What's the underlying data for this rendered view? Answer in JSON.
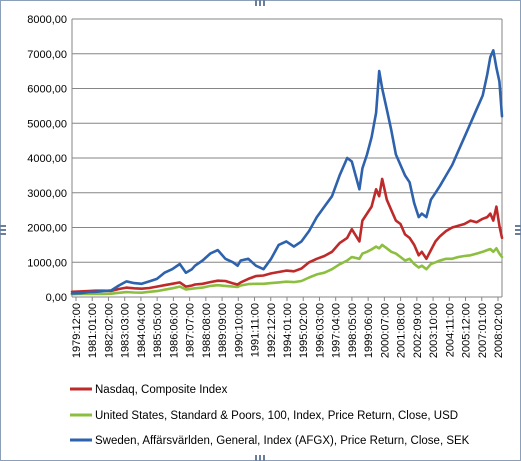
{
  "chart_data": {
    "type": "line",
    "title": "",
    "xlabel": "",
    "ylabel": "",
    "ylim": [
      0,
      8000
    ],
    "yticks": [
      "0,00",
      "1000,00",
      "2000,00",
      "3000,00",
      "4000,00",
      "5000,00",
      "6000,00",
      "7000,00",
      "8000,00"
    ],
    "x_tick_labels": [
      "1979:12:00",
      "1981:01:00",
      "1982:02:00",
      "1983:03:00",
      "1984:04:00",
      "1985:05:00",
      "1986:06:00",
      "1987:07:00",
      "1988:08:00",
      "1989:09:00",
      "1990:10:00",
      "1991:11:00",
      "1992:12:00",
      "1994:01:00",
      "1995:02:00",
      "1996:03:00",
      "1997:04:00",
      "1998:05:00",
      "1999:06:00",
      "2000:07:00",
      "2001:08:00",
      "2002:09:00",
      "2003:10:00",
      "2004:11:00",
      "2005:12:00",
      "2007:01:00",
      "2008:02:00"
    ],
    "grid": "horizontal",
    "legend_position": "bottom",
    "x": [
      1979.92,
      1980.5,
      1981,
      1981.5,
      1982,
      1982.5,
      1983,
      1983.5,
      1984,
      1984.5,
      1985,
      1985.5,
      1986,
      1986.5,
      1987,
      1987.4,
      1987.8,
      1988,
      1988.5,
      1989,
      1989.5,
      1990,
      1990.5,
      1990.8,
      1991,
      1991.5,
      1992,
      1992.5,
      1993,
      1993.5,
      1994,
      1994.5,
      1995,
      1995.5,
      1996,
      1996.5,
      1997,
      1997.5,
      1998,
      1998.3,
      1998.8,
      1999,
      1999.3,
      1999.6,
      1999.9,
      2000.1,
      2000.3,
      2000.6,
      2000.9,
      2001.2,
      2001.5,
      2001.8,
      2002.1,
      2002.4,
      2002.7,
      2002.9,
      2003.2,
      2003.5,
      2003.8,
      2004.1,
      2004.5,
      2004.9,
      2005.3,
      2005.7,
      2006.1,
      2006.5,
      2006.9,
      2007.2,
      2007.4,
      2007.6,
      2007.8,
      2008,
      2008.17
    ],
    "series": [
      {
        "name": "Nasdaq, Composite Index",
        "color": "#be2a2a",
        "values": [
          150,
          160,
          170,
          180,
          180,
          175,
          230,
          270,
          250,
          240,
          260,
          300,
          340,
          380,
          420,
          300,
          330,
          360,
          380,
          430,
          470,
          460,
          390,
          360,
          420,
          520,
          600,
          620,
          680,
          720,
          760,
          740,
          820,
          1000,
          1100,
          1180,
          1300,
          1550,
          1700,
          1950,
          1600,
          2200,
          2400,
          2600,
          3100,
          2900,
          3400,
          2800,
          2500,
          2200,
          2100,
          1800,
          1700,
          1500,
          1200,
          1300,
          1100,
          1350,
          1600,
          1750,
          1900,
          2000,
          2050,
          2100,
          2200,
          2150,
          2250,
          2300,
          2400,
          2200,
          2600,
          2050,
          1700
        ]
      },
      {
        "name": "United States, Standard & Poors, 100, Index, Price Return, Close, USD",
        "color": "#8cbf3f",
        "values": [
          80,
          85,
          90,
          90,
          85,
          95,
          120,
          140,
          130,
          125,
          150,
          170,
          210,
          250,
          300,
          220,
          240,
          250,
          270,
          320,
          340,
          320,
          300,
          290,
          330,
          370,
          380,
          380,
          400,
          420,
          440,
          430,
          460,
          560,
          650,
          700,
          800,
          940,
          1050,
          1150,
          1100,
          1250,
          1300,
          1370,
          1450,
          1400,
          1500,
          1400,
          1300,
          1250,
          1150,
          1050,
          1100,
          950,
          850,
          900,
          800,
          950,
          1000,
          1050,
          1100,
          1100,
          1150,
          1180,
          1200,
          1250,
          1300,
          1350,
          1380,
          1300,
          1400,
          1250,
          1150
        ]
      },
      {
        "name": "Sweden, Affärsvärlden, General, Index (AFGX), Price Return, Close, SEK",
        "color": "#2e62ac",
        "values": [
          100,
          110,
          140,
          150,
          170,
          190,
          330,
          450,
          400,
          380,
          450,
          520,
          700,
          800,
          950,
          700,
          800,
          900,
          1050,
          1250,
          1350,
          1100,
          1000,
          900,
          1050,
          1100,
          900,
          800,
          1100,
          1500,
          1600,
          1450,
          1600,
          1900,
          2300,
          2600,
          2900,
          3500,
          4000,
          3900,
          3100,
          3700,
          4100,
          4600,
          5300,
          6500,
          6000,
          5400,
          4800,
          4100,
          3800,
          3500,
          3300,
          2700,
          2300,
          2400,
          2300,
          2800,
          3000,
          3200,
          3500,
          3800,
          4200,
          4600,
          5000,
          5400,
          5800,
          6400,
          6900,
          7100,
          6600,
          6200,
          5200
        ]
      }
    ]
  }
}
